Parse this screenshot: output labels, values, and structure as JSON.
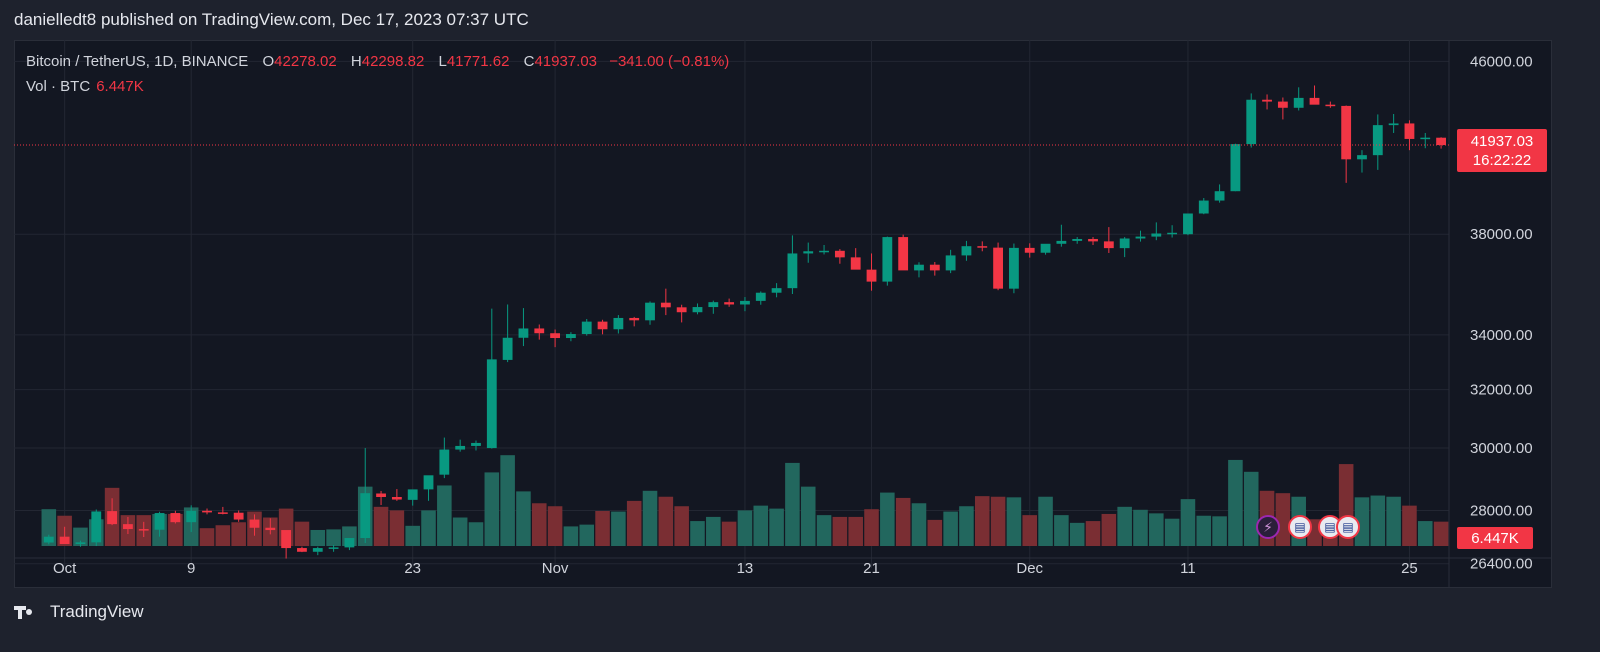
{
  "header": {
    "publisher_line": "danielledt8 published on TradingView.com, Dec 17, 2023 07:37 UTC"
  },
  "legend": {
    "symbol": "Bitcoin / TetherUS, 1D, BINANCE",
    "open_label": "O",
    "open": "42278.02",
    "high_label": "H",
    "high": "42298.82",
    "low_label": "L",
    "low": "41771.62",
    "close_label": "C",
    "close": "41937.03",
    "change": "−341.00 (−0.81%)",
    "volume_label": "Vol · BTC",
    "volume": "6.447K"
  },
  "price_tag": {
    "price": "41937.03",
    "countdown": "16:22:22"
  },
  "volume_tag": "6.447K",
  "footer": {
    "brand": "TradingView"
  },
  "colors": {
    "up": "#089981",
    "down": "#f23645",
    "vol_up": "#22675e",
    "vol_down": "#7a2e33",
    "grid": "#232733",
    "bg": "#131722"
  },
  "icons": [
    "tradingview-logo-icon",
    "lightning-event-icon",
    "us-flag-event-icon"
  ],
  "chart_data": {
    "type": "candlestick",
    "y_scale": "log",
    "ylim": [
      25700,
      47100
    ],
    "y_ticks": [
      26400,
      28000,
      30000,
      32000,
      34000,
      38000,
      46000
    ],
    "y_tick_labels": [
      "26400.00",
      "28000.00",
      "30000.00",
      "32000.00",
      "34000.00",
      "38000.00",
      "46000.00"
    ],
    "x_ticks": [
      {
        "day": 1,
        "label": "Oct"
      },
      {
        "day": 9,
        "label": "9"
      },
      {
        "day": 23,
        "label": "23"
      },
      {
        "day": 32,
        "label": "Nov"
      },
      {
        "day": 44,
        "label": "13"
      },
      {
        "day": 52,
        "label": "21"
      },
      {
        "day": 62,
        "label": "Dec"
      },
      {
        "day": 72,
        "label": "11"
      },
      {
        "day": 86,
        "label": "25"
      }
    ],
    "x_range": [
      -2.2,
      88.5
    ],
    "ohlcv": [
      [
        27025,
        27260,
        26970,
        27200,
        0.62
      ],
      [
        27200,
        27500,
        26980,
        26980,
        0.51
      ],
      [
        26980,
        27080,
        26900,
        27030,
        0.31
      ],
      [
        27030,
        28030,
        26920,
        27970,
        0.45
      ],
      [
        27980,
        28380,
        27550,
        27580,
        0.98
      ],
      [
        27580,
        27800,
        27280,
        27430,
        0.52
      ],
      [
        27430,
        27650,
        27190,
        27410,
        0.52
      ],
      [
        27410,
        27960,
        27200,
        27920,
        0.54
      ],
      [
        27920,
        27990,
        27600,
        27640,
        0.54
      ],
      [
        27640,
        28160,
        27340,
        27990,
        0.65
      ],
      [
        27990,
        28060,
        27880,
        27940,
        0.3
      ],
      [
        27940,
        28110,
        27880,
        27930,
        0.35
      ],
      [
        27930,
        28000,
        27650,
        27720,
        0.4
      ],
      [
        27720,
        27880,
        27230,
        27470,
        0.58
      ],
      [
        27470,
        27760,
        27270,
        27400,
        0.48
      ],
      [
        27400,
        27370,
        26550,
        26860,
        0.63
      ],
      [
        26860,
        26900,
        26740,
        26750,
        0.41
      ],
      [
        26750,
        26900,
        26650,
        26860,
        0.27
      ],
      [
        26860,
        26950,
        26750,
        26880,
        0.28
      ],
      [
        26880,
        27160,
        26800,
        27160,
        0.33
      ],
      [
        27160,
        30000,
        27010,
        28540,
        1.0
      ],
      [
        28530,
        28610,
        28170,
        28420,
        0.66
      ],
      [
        28420,
        28670,
        28300,
        28340,
        0.6
      ],
      [
        28330,
        28450,
        28150,
        28660,
        0.34
      ],
      [
        28660,
        28800,
        28300,
        29110,
        0.6
      ],
      [
        29130,
        30350,
        29020,
        29950,
        1.02
      ],
      [
        29950,
        30280,
        29880,
        30070,
        0.48
      ],
      [
        30070,
        30250,
        29920,
        30170,
        0.4
      ],
      [
        30000,
        35000,
        29980,
        33090,
        1.24
      ],
      [
        33070,
        35160,
        32990,
        33890,
        1.53
      ],
      [
        33890,
        35020,
        33580,
        34240,
        0.92
      ],
      [
        34240,
        34390,
        33820,
        34060,
        0.72
      ],
      [
        34060,
        34200,
        33540,
        33880,
        0.67
      ],
      [
        33880,
        34100,
        33760,
        34030,
        0.33
      ],
      [
        34030,
        34600,
        33970,
        34500,
        0.36
      ],
      [
        34500,
        34570,
        34020,
        34210,
        0.59
      ],
      [
        34210,
        34750,
        34050,
        34640,
        0.58
      ],
      [
        34640,
        34680,
        34320,
        34550,
        0.76
      ],
      [
        34550,
        35280,
        34380,
        35230,
        0.93
      ],
      [
        35230,
        35780,
        34750,
        35050,
        0.83
      ],
      [
        35050,
        35150,
        34470,
        34860,
        0.67
      ],
      [
        34860,
        35200,
        34780,
        35060,
        0.42
      ],
      [
        35060,
        35310,
        34800,
        35250,
        0.49
      ],
      [
        35250,
        35390,
        35070,
        35160,
        0.41
      ],
      [
        35160,
        35450,
        34900,
        35300,
        0.6
      ],
      [
        35300,
        35670,
        35150,
        35620,
        0.68
      ],
      [
        35620,
        36000,
        35440,
        35800,
        0.63
      ],
      [
        35800,
        37950,
        35570,
        37200,
        1.4
      ],
      [
        37200,
        37650,
        36820,
        37290,
        1.0
      ],
      [
        37290,
        37550,
        37160,
        37310,
        0.52
      ],
      [
        37310,
        37380,
        36780,
        37040,
        0.49
      ],
      [
        37040,
        37420,
        36760,
        36540,
        0.49
      ],
      [
        36540,
        37200,
        35700,
        36060,
        0.62
      ],
      [
        36060,
        37900,
        35900,
        37880,
        0.9
      ],
      [
        37880,
        37980,
        36550,
        36510,
        0.81
      ],
      [
        36510,
        36840,
        36230,
        36740,
        0.72
      ],
      [
        36740,
        36850,
        36300,
        36510,
        0.44
      ],
      [
        36510,
        37350,
        36400,
        37120,
        0.58
      ],
      [
        37120,
        37720,
        36900,
        37500,
        0.67
      ],
      [
        37500,
        37700,
        37290,
        37440,
        0.84
      ],
      [
        37440,
        37650,
        35720,
        35780,
        0.83
      ],
      [
        35780,
        37610,
        35600,
        37430,
        0.82
      ],
      [
        37430,
        37620,
        37030,
        37230,
        0.52
      ],
      [
        37230,
        37550,
        37150,
        37600,
        0.83
      ],
      [
        37600,
        38400,
        37480,
        37720,
        0.52
      ],
      [
        37720,
        37880,
        37600,
        37800,
        0.39
      ],
      [
        37800,
        37880,
        37550,
        37700,
        0.42
      ],
      [
        37700,
        38300,
        37220,
        37420,
        0.54
      ],
      [
        37420,
        37880,
        37050,
        37820,
        0.66
      ],
      [
        37820,
        38150,
        37690,
        37900,
        0.61
      ],
      [
        37900,
        38500,
        37750,
        38030,
        0.55
      ],
      [
        38030,
        38380,
        37860,
        38060,
        0.46
      ],
      [
        38000,
        38820,
        37960,
        38880,
        0.79
      ],
      [
        38880,
        39550,
        38850,
        39440,
        0.51
      ],
      [
        39440,
        40150,
        39350,
        39850,
        0.5
      ],
      [
        39850,
        42000,
        39850,
        41980,
        1.45
      ],
      [
        41980,
        44400,
        41820,
        44090,
        1.25
      ],
      [
        44090,
        44350,
        43620,
        44000,
        0.93
      ],
      [
        44000,
        44200,
        43140,
        43700,
        0.89
      ],
      [
        43700,
        44700,
        43570,
        44180,
        0.83
      ],
      [
        44180,
        44790,
        44050,
        43850,
        0.45
      ],
      [
        43850,
        44000,
        43700,
        43790,
        0.42
      ],
      [
        43790,
        43810,
        40220,
        41280,
        1.38
      ],
      [
        41280,
        41700,
        40680,
        41470,
        0.82
      ],
      [
        41470,
        43380,
        40800,
        42870,
        0.85
      ],
      [
        42870,
        43400,
        42500,
        42950,
        0.83
      ],
      [
        42950,
        43100,
        41700,
        42220,
        0.68
      ],
      [
        42220,
        42500,
        41790,
        42280,
        0.42
      ],
      [
        42278.02,
        42298.82,
        41771.62,
        41937.03,
        0.41
      ]
    ]
  }
}
